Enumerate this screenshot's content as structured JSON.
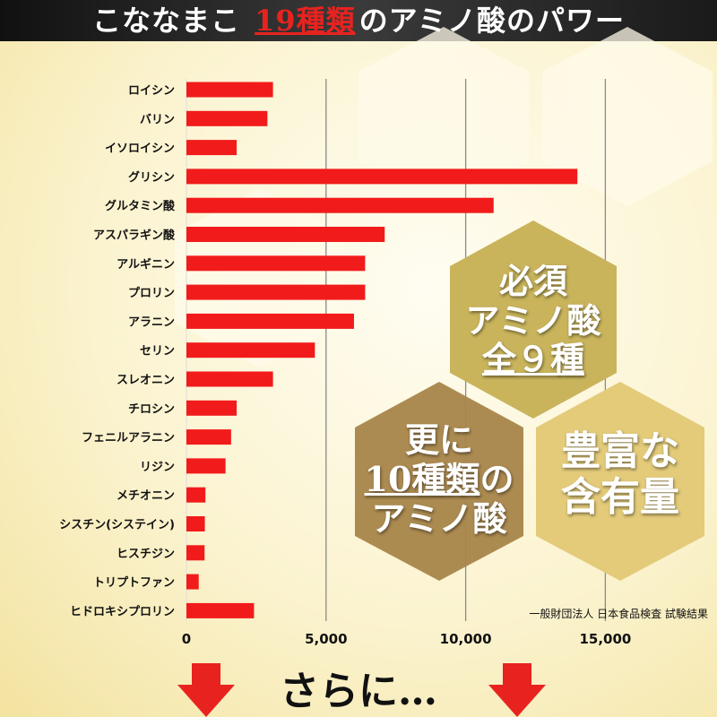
{
  "header": {
    "title_pre": "こななまこ",
    "title_highlight": "19種類",
    "title_post": "のアミノ酸のパワー"
  },
  "badges": {
    "essential": {
      "line1": "必須",
      "line2": "アミノ酸",
      "line3": "全９種"
    },
    "additional": {
      "line1": "更に",
      "line2a": "10種類",
      "line2b": "の",
      "line3": "アミノ酸"
    },
    "rich": {
      "line1": "豊富な",
      "line2": "含有量"
    }
  },
  "source": "一般財団法人 日本食品検査 試験結果",
  "footer": {
    "text": "さらに…"
  },
  "colors": {
    "bar": "#f21b1b",
    "hex_essential": "#c9b45c",
    "hex_additional": "#a8854a",
    "hex_rich": "#e3cb7a",
    "arrow": "#e8231f"
  },
  "chart_data": {
    "type": "bar",
    "orientation": "horizontal",
    "categories": [
      "ロイシン",
      "バリン",
      "イソロイシン",
      "グリシン",
      "グルタミン酸",
      "アスパラギン酸",
      "アルギニン",
      "プロリン",
      "アラニン",
      "セリン",
      "スレオニン",
      "チロシン",
      "フェニルアラニン",
      "リジン",
      "メチオニン",
      "シスチン(システイン)",
      "ヒスチジン",
      "トリプトファン",
      "ヒドロキシプロリン"
    ],
    "values": [
      3100,
      2900,
      1800,
      14000,
      11000,
      7100,
      6400,
      6400,
      6000,
      4600,
      3100,
      1800,
      1600,
      1400,
      680,
      660,
      650,
      440,
      2420
    ],
    "xlim": [
      0,
      16500
    ],
    "xticks": [
      0,
      5000,
      10000,
      15000
    ],
    "xtick_labels": [
      "0",
      "5,000",
      "10,000",
      "15,000"
    ],
    "grid": true
  }
}
